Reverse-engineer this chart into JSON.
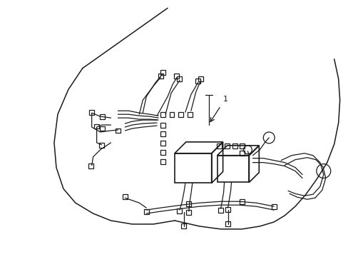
{
  "background_color": "#ffffff",
  "line_color": "#1a1a1a",
  "line_width": 0.9,
  "fig_width": 4.89,
  "fig_height": 3.6,
  "dpi": 100,
  "label_text": "1",
  "label_fontsize": 8
}
